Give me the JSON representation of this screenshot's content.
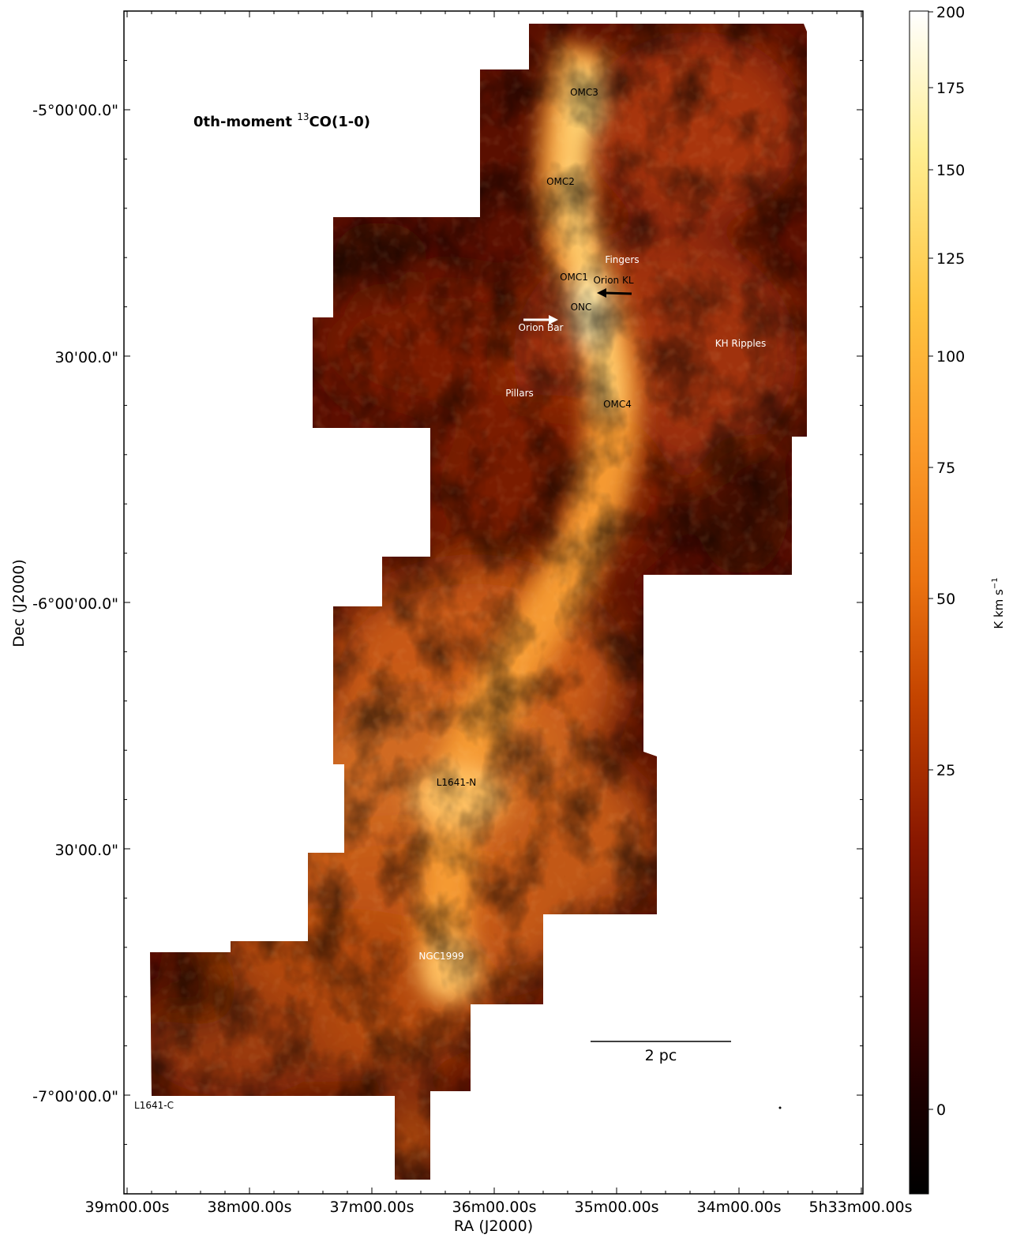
{
  "figure": {
    "title_prefix": "0th-moment ",
    "title_superscript": "13",
    "title_suffix": "CO(1-0)"
  },
  "axes": {
    "xlabel": "RA (J2000)",
    "ylabel": "Dec (J2000)",
    "xticks": [
      "39m00.00s",
      "38m00.00s",
      "37m00.00s",
      "36m00.00s",
      "35m00.00s",
      "34m00.00s",
      "5h33m00.00s"
    ],
    "yticks": [
      "-5°00'00.0\"",
      "30'00.0\"",
      "-6°00'00.0\"",
      "30'00.0\"",
      "-7°00'00.0\""
    ]
  },
  "colorbar": {
    "label": "K km s",
    "label_sup": "−1",
    "ticks": [
      "200",
      "175",
      "150",
      "125",
      "100",
      "75",
      "50",
      "25",
      "0"
    ],
    "colors": [
      "#000000",
      "#3a0000",
      "#7a0c00",
      "#b33a00",
      "#e36a10",
      "#fc9a20",
      "#ffd040",
      "#ffffc0",
      "#ffffff"
    ]
  },
  "scalebar": {
    "label": "2 pc"
  },
  "annotations": {
    "omc3": "OMC3",
    "omc2": "OMC2",
    "fingers": "Fingers",
    "omc1": "OMC1",
    "orion_kl": "Orion KL",
    "onc": "ONC",
    "orion_bar": "Orion Bar",
    "kh_ripples": "KH Ripples",
    "pillars": "Pillars",
    "omc4": "OMC4",
    "l1641n": "L1641-N",
    "ngc1999": "NGC1999",
    "l1641c": "L1641-C"
  }
}
